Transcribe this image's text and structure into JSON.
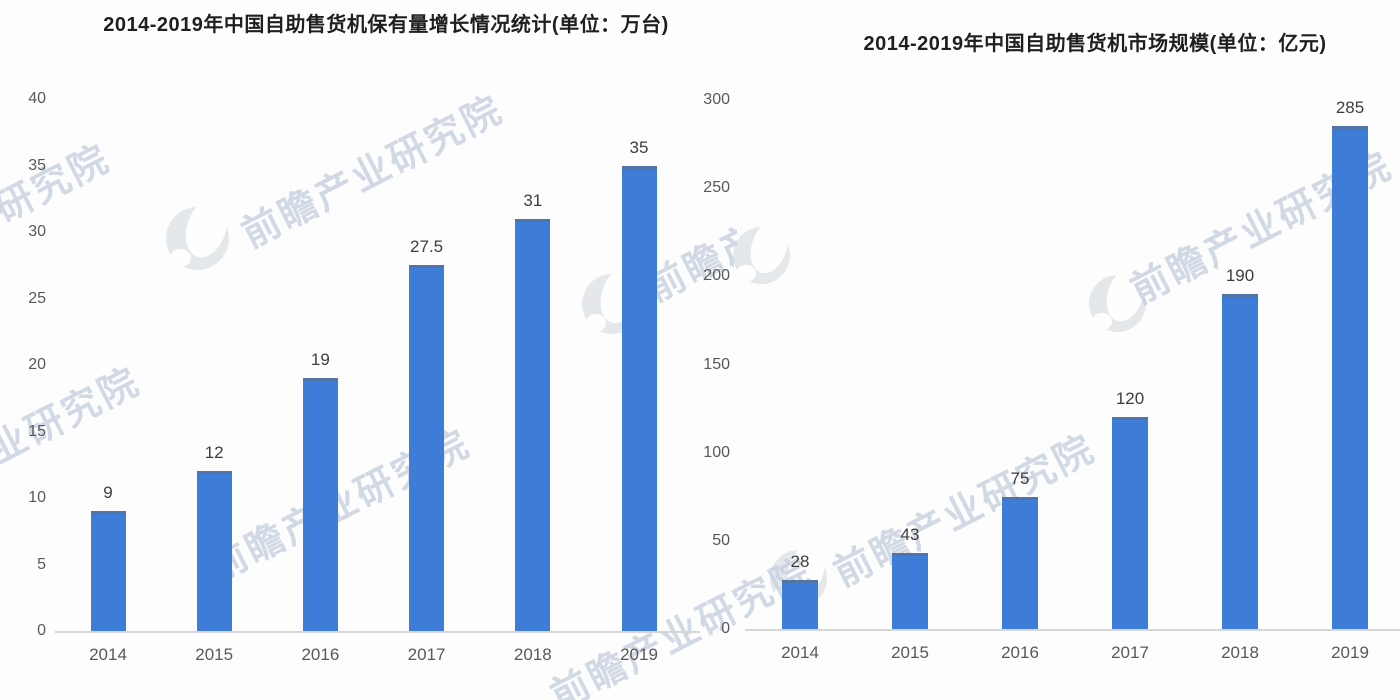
{
  "watermark": {
    "text": "前瞻产业研究院",
    "text_color": "#c7d1df",
    "logo_color": "#e3e6ea"
  },
  "chart_data": [
    {
      "type": "bar",
      "title": "2014-2019年中国自助售货机保有量增长情况统计(单位：万台)",
      "unit": "万台",
      "categories": [
        "2014",
        "2015",
        "2016",
        "2017",
        "2018",
        "2019"
      ],
      "values": [
        9,
        12,
        19,
        27.5,
        31,
        35
      ],
      "data_labels": [
        "9",
        "12",
        "19",
        "27.5",
        "31",
        "35"
      ],
      "ylim": [
        0,
        40
      ],
      "yticks": [
        0,
        5,
        10,
        15,
        20,
        25,
        30,
        35,
        40
      ],
      "bar_color": "#3d7dd8",
      "axis_color": "#d6d6d6",
      "grid": false,
      "legend": "none"
    },
    {
      "type": "bar",
      "title": "2014-2019年中国自助售货机市场规模(单位：亿元)",
      "unit": "亿元",
      "categories": [
        "2014",
        "2015",
        "2016",
        "2017",
        "2018",
        "2019"
      ],
      "values": [
        28,
        43,
        75,
        120,
        190,
        285
      ],
      "data_labels": [
        "28",
        "43",
        "75",
        "120",
        "190",
        "285"
      ],
      "ylim": [
        0,
        300
      ],
      "yticks": [
        0,
        50,
        100,
        150,
        200,
        250,
        300
      ],
      "bar_color": "#3d7dd8",
      "axis_color": "#d6d6d6",
      "grid": false,
      "legend": "none"
    }
  ]
}
